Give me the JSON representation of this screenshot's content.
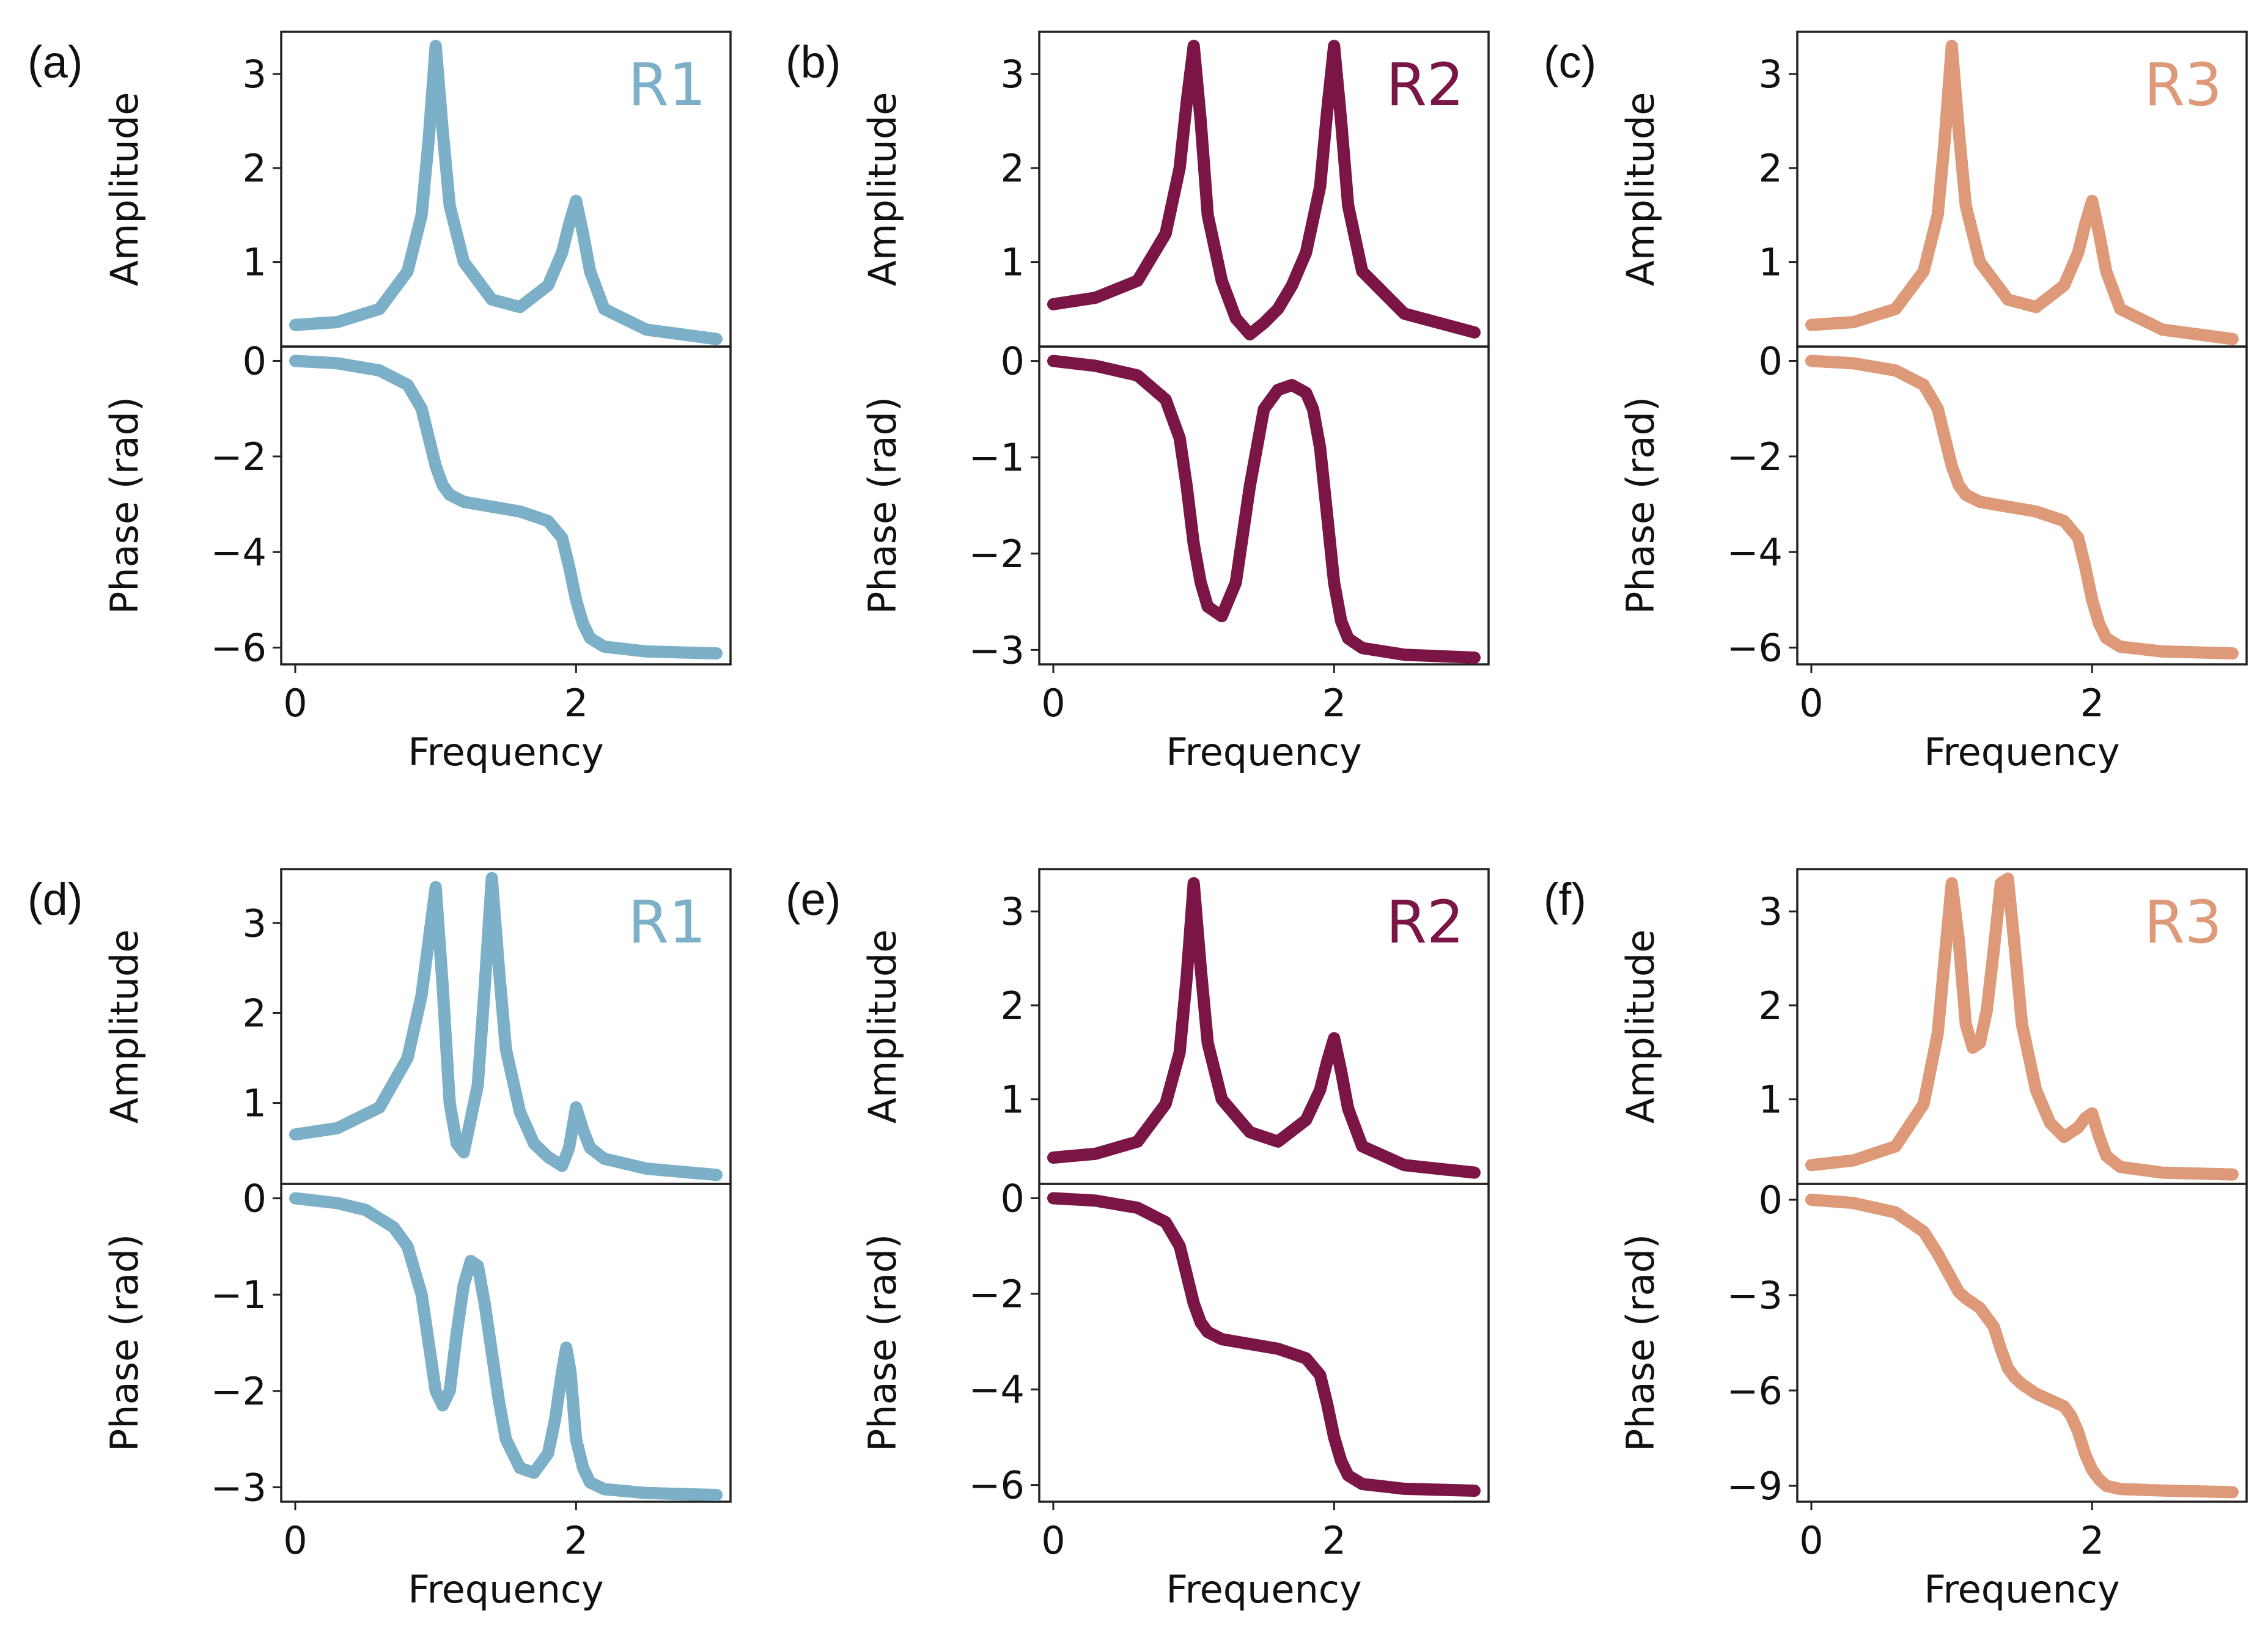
{
  "figure": {
    "colors": {
      "R1": "#7bb0c8",
      "R2": "#7a1545",
      "R3": "#de9a78"
    },
    "xlabel": "Frequency",
    "amplitude_label": "Amplitude",
    "phase_label": "Phase (rad)"
  },
  "chart_data": [
    {
      "id": "a",
      "letter": "(a)",
      "tag": "R1",
      "color_key": "R1",
      "type": "line",
      "xlim": [
        -0.1,
        3.1
      ],
      "xticks": [
        "0",
        "2"
      ],
      "xtick_values": [
        0,
        2
      ],
      "amplitude": {
        "ylabel": "Amplitude",
        "ylim": [
          0.1,
          3.45
        ],
        "yticks": [
          "1",
          "2",
          "3"
        ],
        "ytick_values": [
          1,
          2,
          3
        ],
        "x": [
          0.0,
          0.3,
          0.6,
          0.8,
          0.9,
          0.95,
          1.0,
          1.05,
          1.1,
          1.2,
          1.4,
          1.6,
          1.8,
          1.9,
          1.95,
          2.0,
          2.05,
          2.1,
          2.2,
          2.5,
          3.0
        ],
        "y": [
          0.33,
          0.36,
          0.5,
          0.9,
          1.5,
          2.3,
          3.3,
          2.4,
          1.6,
          1.0,
          0.6,
          0.52,
          0.75,
          1.1,
          1.4,
          1.65,
          1.3,
          0.9,
          0.5,
          0.28,
          0.18
        ]
      },
      "phase": {
        "ylabel": "Phase (rad)",
        "ylim": [
          -6.35,
          0.3
        ],
        "yticks": [
          "0",
          "−2",
          "−4",
          "−6"
        ],
        "ytick_values": [
          0,
          -2,
          -4,
          -6
        ],
        "x": [
          0.0,
          0.3,
          0.6,
          0.8,
          0.9,
          0.95,
          1.0,
          1.05,
          1.1,
          1.2,
          1.4,
          1.6,
          1.8,
          1.9,
          1.95,
          2.0,
          2.05,
          2.1,
          2.2,
          2.5,
          3.0
        ],
        "y": [
          0.0,
          -0.05,
          -0.2,
          -0.5,
          -1.0,
          -1.6,
          -2.2,
          -2.6,
          -2.8,
          -2.95,
          -3.05,
          -3.15,
          -3.35,
          -3.7,
          -4.3,
          -5.0,
          -5.5,
          -5.8,
          -5.98,
          -6.08,
          -6.12
        ]
      }
    },
    {
      "id": "b",
      "letter": "(b)",
      "tag": "R2",
      "color_key": "R2",
      "type": "line",
      "xlim": [
        -0.1,
        3.1
      ],
      "xticks": [
        "0",
        "2"
      ],
      "xtick_values": [
        0,
        2
      ],
      "amplitude": {
        "ylabel": "Amplitude",
        "ylim": [
          0.1,
          3.45
        ],
        "yticks": [
          "1",
          "2",
          "3"
        ],
        "ytick_values": [
          1,
          2,
          3
        ],
        "x": [
          0.0,
          0.3,
          0.6,
          0.8,
          0.9,
          0.95,
          1.0,
          1.05,
          1.1,
          1.2,
          1.3,
          1.4,
          1.5,
          1.6,
          1.7,
          1.8,
          1.9,
          1.95,
          2.0,
          2.05,
          2.1,
          2.2,
          2.5,
          3.0
        ],
        "y": [
          0.55,
          0.62,
          0.8,
          1.3,
          2.0,
          2.7,
          3.3,
          2.5,
          1.5,
          0.8,
          0.4,
          0.23,
          0.35,
          0.5,
          0.75,
          1.1,
          1.8,
          2.6,
          3.3,
          2.5,
          1.6,
          0.9,
          0.45,
          0.25
        ]
      },
      "phase": {
        "ylabel": "Phase (rad)",
        "ylim": [
          -3.15,
          0.15
        ],
        "yticks": [
          "0",
          "−1",
          "−2",
          "−3"
        ],
        "ytick_values": [
          0,
          -1,
          -2,
          -3
        ],
        "x": [
          0.0,
          0.3,
          0.6,
          0.8,
          0.9,
          0.95,
          1.0,
          1.05,
          1.1,
          1.2,
          1.3,
          1.4,
          1.5,
          1.6,
          1.7,
          1.8,
          1.85,
          1.9,
          1.95,
          2.0,
          2.05,
          2.1,
          2.2,
          2.5,
          3.0
        ],
        "y": [
          0.0,
          -0.05,
          -0.15,
          -0.4,
          -0.8,
          -1.3,
          -1.9,
          -2.3,
          -2.55,
          -2.65,
          -2.3,
          -1.3,
          -0.5,
          -0.3,
          -0.25,
          -0.33,
          -0.5,
          -0.9,
          -1.6,
          -2.3,
          -2.7,
          -2.88,
          -2.98,
          -3.05,
          -3.08
        ]
      }
    },
    {
      "id": "c",
      "letter": "(c)",
      "tag": "R3",
      "color_key": "R3",
      "type": "line",
      "xlim": [
        -0.1,
        3.1
      ],
      "xticks": [
        "0",
        "2"
      ],
      "xtick_values": [
        0,
        2
      ],
      "amplitude": {
        "ylabel": "Amplitude",
        "ylim": [
          0.1,
          3.45
        ],
        "yticks": [
          "1",
          "2",
          "3"
        ],
        "ytick_values": [
          1,
          2,
          3
        ],
        "x": [
          0.0,
          0.3,
          0.6,
          0.8,
          0.9,
          0.95,
          1.0,
          1.05,
          1.1,
          1.2,
          1.4,
          1.6,
          1.8,
          1.9,
          1.95,
          2.0,
          2.05,
          2.1,
          2.2,
          2.5,
          3.0
        ],
        "y": [
          0.33,
          0.36,
          0.5,
          0.9,
          1.5,
          2.3,
          3.3,
          2.4,
          1.6,
          1.0,
          0.6,
          0.52,
          0.75,
          1.1,
          1.4,
          1.65,
          1.3,
          0.9,
          0.5,
          0.28,
          0.18
        ]
      },
      "phase": {
        "ylabel": "Phase (rad)",
        "ylim": [
          -6.35,
          0.3
        ],
        "yticks": [
          "0",
          "−2",
          "−4",
          "−6"
        ],
        "ytick_values": [
          0,
          -2,
          -4,
          -6
        ],
        "x": [
          0.0,
          0.3,
          0.6,
          0.8,
          0.9,
          0.95,
          1.0,
          1.05,
          1.1,
          1.2,
          1.4,
          1.6,
          1.8,
          1.9,
          1.95,
          2.0,
          2.05,
          2.1,
          2.2,
          2.5,
          3.0
        ],
        "y": [
          0.0,
          -0.05,
          -0.2,
          -0.5,
          -1.0,
          -1.6,
          -2.2,
          -2.6,
          -2.8,
          -2.95,
          -3.05,
          -3.15,
          -3.35,
          -3.7,
          -4.3,
          -5.0,
          -5.5,
          -5.8,
          -5.98,
          -6.08,
          -6.12
        ]
      }
    },
    {
      "id": "d",
      "letter": "(d)",
      "tag": "R1",
      "color_key": "R1",
      "type": "line",
      "xlim": [
        -0.1,
        3.1
      ],
      "xticks": [
        "0",
        "2"
      ],
      "xtick_values": [
        0,
        2
      ],
      "amplitude": {
        "ylabel": "Amplitude",
        "ylim": [
          0.1,
          3.6
        ],
        "yticks": [
          "1",
          "2",
          "3"
        ],
        "ytick_values": [
          1,
          2,
          3
        ],
        "x": [
          0.0,
          0.3,
          0.6,
          0.8,
          0.9,
          0.95,
          1.0,
          1.05,
          1.1,
          1.15,
          1.2,
          1.3,
          1.35,
          1.4,
          1.45,
          1.5,
          1.6,
          1.7,
          1.8,
          1.9,
          1.95,
          2.0,
          2.05,
          2.1,
          2.2,
          2.5,
          3.0
        ],
        "y": [
          0.65,
          0.72,
          0.95,
          1.5,
          2.2,
          2.8,
          3.4,
          2.3,
          1.0,
          0.55,
          0.45,
          1.2,
          2.3,
          3.5,
          2.5,
          1.6,
          0.9,
          0.55,
          0.4,
          0.3,
          0.5,
          0.95,
          0.7,
          0.5,
          0.38,
          0.27,
          0.2
        ]
      },
      "phase": {
        "ylabel": "Phase (rad)",
        "ylim": [
          -3.15,
          0.15
        ],
        "yticks": [
          "0",
          "−1",
          "−2",
          "−3"
        ],
        "ytick_values": [
          0,
          -1,
          -2,
          -3
        ],
        "x": [
          0.0,
          0.3,
          0.5,
          0.7,
          0.8,
          0.9,
          0.95,
          1.0,
          1.05,
          1.1,
          1.15,
          1.2,
          1.25,
          1.3,
          1.35,
          1.4,
          1.45,
          1.5,
          1.6,
          1.7,
          1.8,
          1.85,
          1.9,
          1.93,
          1.96,
          2.0,
          2.05,
          2.1,
          2.2,
          2.5,
          3.0
        ],
        "y": [
          0.0,
          -0.05,
          -0.12,
          -0.3,
          -0.5,
          -1.0,
          -1.5,
          -2.0,
          -2.15,
          -2.0,
          -1.4,
          -0.9,
          -0.65,
          -0.7,
          -1.1,
          -1.6,
          -2.1,
          -2.5,
          -2.8,
          -2.85,
          -2.65,
          -2.3,
          -1.8,
          -1.55,
          -1.8,
          -2.5,
          -2.8,
          -2.95,
          -3.02,
          -3.06,
          -3.08
        ]
      }
    },
    {
      "id": "e",
      "letter": "(e)",
      "tag": "R2",
      "color_key": "R2",
      "type": "line",
      "xlim": [
        -0.1,
        3.1
      ],
      "xticks": [
        "0",
        "2"
      ],
      "xtick_values": [
        0,
        2
      ],
      "amplitude": {
        "ylabel": "Amplitude",
        "ylim": [
          0.1,
          3.45
        ],
        "yticks": [
          "1",
          "2",
          "3"
        ],
        "ytick_values": [
          1,
          2,
          3
        ],
        "x": [
          0.0,
          0.3,
          0.6,
          0.8,
          0.9,
          0.95,
          1.0,
          1.05,
          1.1,
          1.2,
          1.4,
          1.6,
          1.8,
          1.9,
          1.95,
          2.0,
          2.05,
          2.1,
          2.2,
          2.5,
          3.0
        ],
        "y": [
          0.38,
          0.42,
          0.55,
          0.95,
          1.5,
          2.3,
          3.3,
          2.4,
          1.6,
          1.0,
          0.65,
          0.55,
          0.78,
          1.1,
          1.4,
          1.65,
          1.3,
          0.9,
          0.5,
          0.3,
          0.22
        ]
      },
      "phase": {
        "ylabel": "Phase (rad)",
        "ylim": [
          -6.35,
          0.3
        ],
        "yticks": [
          "0",
          "−2",
          "−4",
          "−6"
        ],
        "ytick_values": [
          0,
          -2,
          -4,
          -6
        ],
        "x": [
          0.0,
          0.3,
          0.6,
          0.8,
          0.9,
          0.95,
          1.0,
          1.05,
          1.1,
          1.2,
          1.4,
          1.6,
          1.8,
          1.9,
          1.95,
          2.0,
          2.05,
          2.1,
          2.2,
          2.5,
          3.0
        ],
        "y": [
          0.0,
          -0.05,
          -0.2,
          -0.5,
          -1.0,
          -1.6,
          -2.2,
          -2.6,
          -2.8,
          -2.95,
          -3.05,
          -3.15,
          -3.35,
          -3.7,
          -4.3,
          -5.0,
          -5.5,
          -5.8,
          -5.98,
          -6.08,
          -6.12
        ]
      }
    },
    {
      "id": "f",
      "letter": "(f)",
      "tag": "R3",
      "color_key": "R3",
      "type": "line",
      "xlim": [
        -0.1,
        3.1
      ],
      "xticks": [
        "0",
        "2"
      ],
      "xtick_values": [
        0,
        2
      ],
      "amplitude": {
        "ylabel": "Amplitude",
        "ylim": [
          0.1,
          3.45
        ],
        "yticks": [
          "1",
          "2",
          "3"
        ],
        "ytick_values": [
          1,
          2,
          3
        ],
        "x": [
          0.0,
          0.3,
          0.6,
          0.8,
          0.9,
          0.95,
          1.0,
          1.05,
          1.1,
          1.15,
          1.2,
          1.25,
          1.3,
          1.35,
          1.4,
          1.45,
          1.5,
          1.6,
          1.7,
          1.8,
          1.9,
          1.95,
          2.0,
          2.05,
          2.1,
          2.2,
          2.5,
          3.0
        ],
        "y": [
          0.3,
          0.35,
          0.5,
          0.95,
          1.7,
          2.5,
          3.3,
          2.7,
          1.8,
          1.55,
          1.6,
          1.95,
          2.6,
          3.3,
          3.35,
          2.6,
          1.8,
          1.1,
          0.75,
          0.6,
          0.7,
          0.8,
          0.85,
          0.6,
          0.4,
          0.28,
          0.22,
          0.2
        ]
      },
      "phase": {
        "ylabel": "Phase (rad)",
        "ylim": [
          -9.5,
          0.5
        ],
        "yticks": [
          "0",
          "−3",
          "−6",
          "−9"
        ],
        "ytick_values": [
          0,
          -3,
          -6,
          -9
        ],
        "x": [
          0.0,
          0.3,
          0.6,
          0.8,
          0.9,
          1.0,
          1.05,
          1.1,
          1.2,
          1.3,
          1.35,
          1.4,
          1.45,
          1.5,
          1.6,
          1.7,
          1.8,
          1.85,
          1.9,
          1.95,
          2.0,
          2.05,
          2.1,
          2.2,
          2.5,
          3.0
        ],
        "y": [
          0.0,
          -0.1,
          -0.4,
          -1.0,
          -1.7,
          -2.5,
          -2.9,
          -3.1,
          -3.4,
          -4.0,
          -4.7,
          -5.3,
          -5.6,
          -5.8,
          -6.1,
          -6.3,
          -6.5,
          -6.8,
          -7.3,
          -8.0,
          -8.5,
          -8.8,
          -9.0,
          -9.1,
          -9.15,
          -9.2
        ]
      }
    }
  ]
}
